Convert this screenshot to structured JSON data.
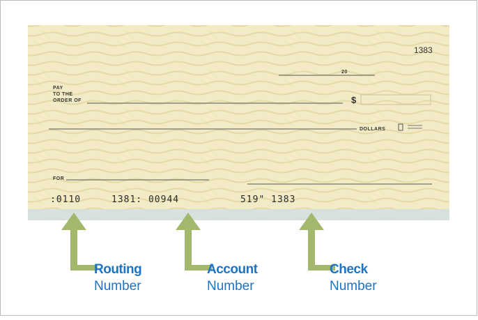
{
  "check": {
    "check_number": "1383",
    "date_label": "20",
    "pay_lines": [
      "PAY",
      "TO THE",
      "ORDER OF"
    ],
    "currency": "$",
    "dollars": "DOLLARS",
    "memo": "FOR",
    "micr": [
      ":0110",
      "1381: 00944",
      "519\" 1383"
    ]
  },
  "labels": [
    {
      "title": "Routing",
      "subtitle": "Number"
    },
    {
      "title": "Account",
      "subtitle": "Number"
    },
    {
      "title": "Check",
      "subtitle": "Number"
    }
  ]
}
